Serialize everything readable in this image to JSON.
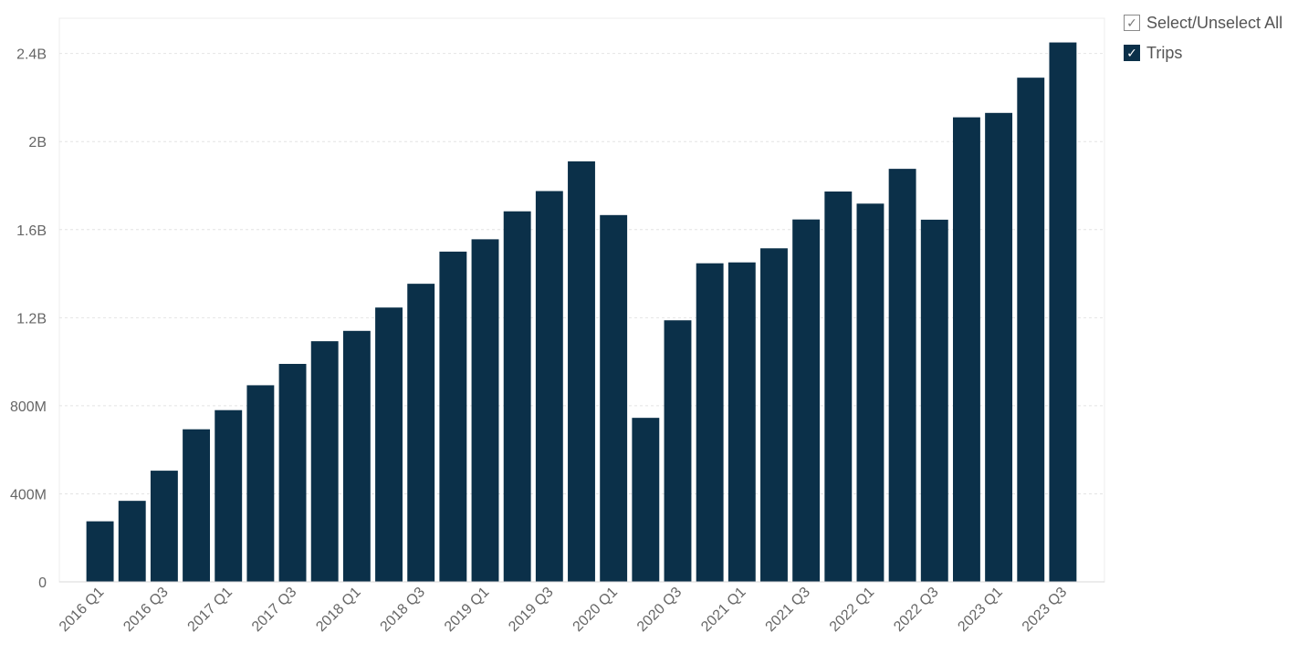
{
  "chart_data": {
    "type": "bar",
    "categories": [
      "2016 Q1",
      "2016 Q2",
      "2016 Q3",
      "2016 Q4",
      "2017 Q1",
      "2017 Q2",
      "2017 Q3",
      "2017 Q4",
      "2018 Q1",
      "2018 Q2",
      "2018 Q3",
      "2018 Q4",
      "2019 Q1",
      "2019 Q2",
      "2019 Q3",
      "2019 Q4",
      "2020 Q1",
      "2020 Q2",
      "2020 Q3",
      "2020 Q4",
      "2021 Q1",
      "2021 Q2",
      "2021 Q3",
      "2021 Q4",
      "2022 Q1",
      "2022 Q2",
      "2022 Q3",
      "2022 Q4",
      "2023 Q1",
      "2023 Q2",
      "2023 Q3"
    ],
    "x_tick_labels": [
      "2016 Q1",
      "2016 Q3",
      "2017 Q1",
      "2017 Q3",
      "2018 Q1",
      "2018 Q3",
      "2019 Q1",
      "2019 Q3",
      "2020 Q1",
      "2020 Q3",
      "2021 Q1",
      "2021 Q3",
      "2022 Q1",
      "2022 Q3",
      "2023 Q1",
      "2023 Q3"
    ],
    "series": [
      {
        "name": "Trips",
        "values": [
          275000000,
          368000000,
          505000000,
          693000000,
          780000000,
          893000000,
          990000000,
          1093000000,
          1140000000,
          1246000000,
          1354000000,
          1500000000,
          1556000000,
          1683000000,
          1775000000,
          1910000000,
          1666000000,
          745000000,
          1188000000,
          1447000000,
          1451000000,
          1515000000,
          1646000000,
          1773000000,
          1718000000,
          1876000000,
          1645000000,
          2110000000,
          2130000000,
          2290000000,
          2450000000
        ]
      }
    ],
    "y_ticks": [
      0,
      400000000,
      800000000,
      1200000000,
      1600000000,
      2000000000,
      2400000000
    ],
    "y_tick_labels": [
      "0",
      "400M",
      "800M",
      "1.2B",
      "1.6B",
      "2B",
      "2.4B"
    ],
    "ylim": [
      0,
      2560000000
    ],
    "title": "",
    "xlabel": "",
    "ylabel": "",
    "grid": true,
    "legend_position": "top-right",
    "bar_color": "#0b3049"
  },
  "legend": {
    "select_all_label": "Select/Unselect All",
    "select_all_check": "✓",
    "trips_label": "Trips",
    "trips_check": "✓"
  }
}
